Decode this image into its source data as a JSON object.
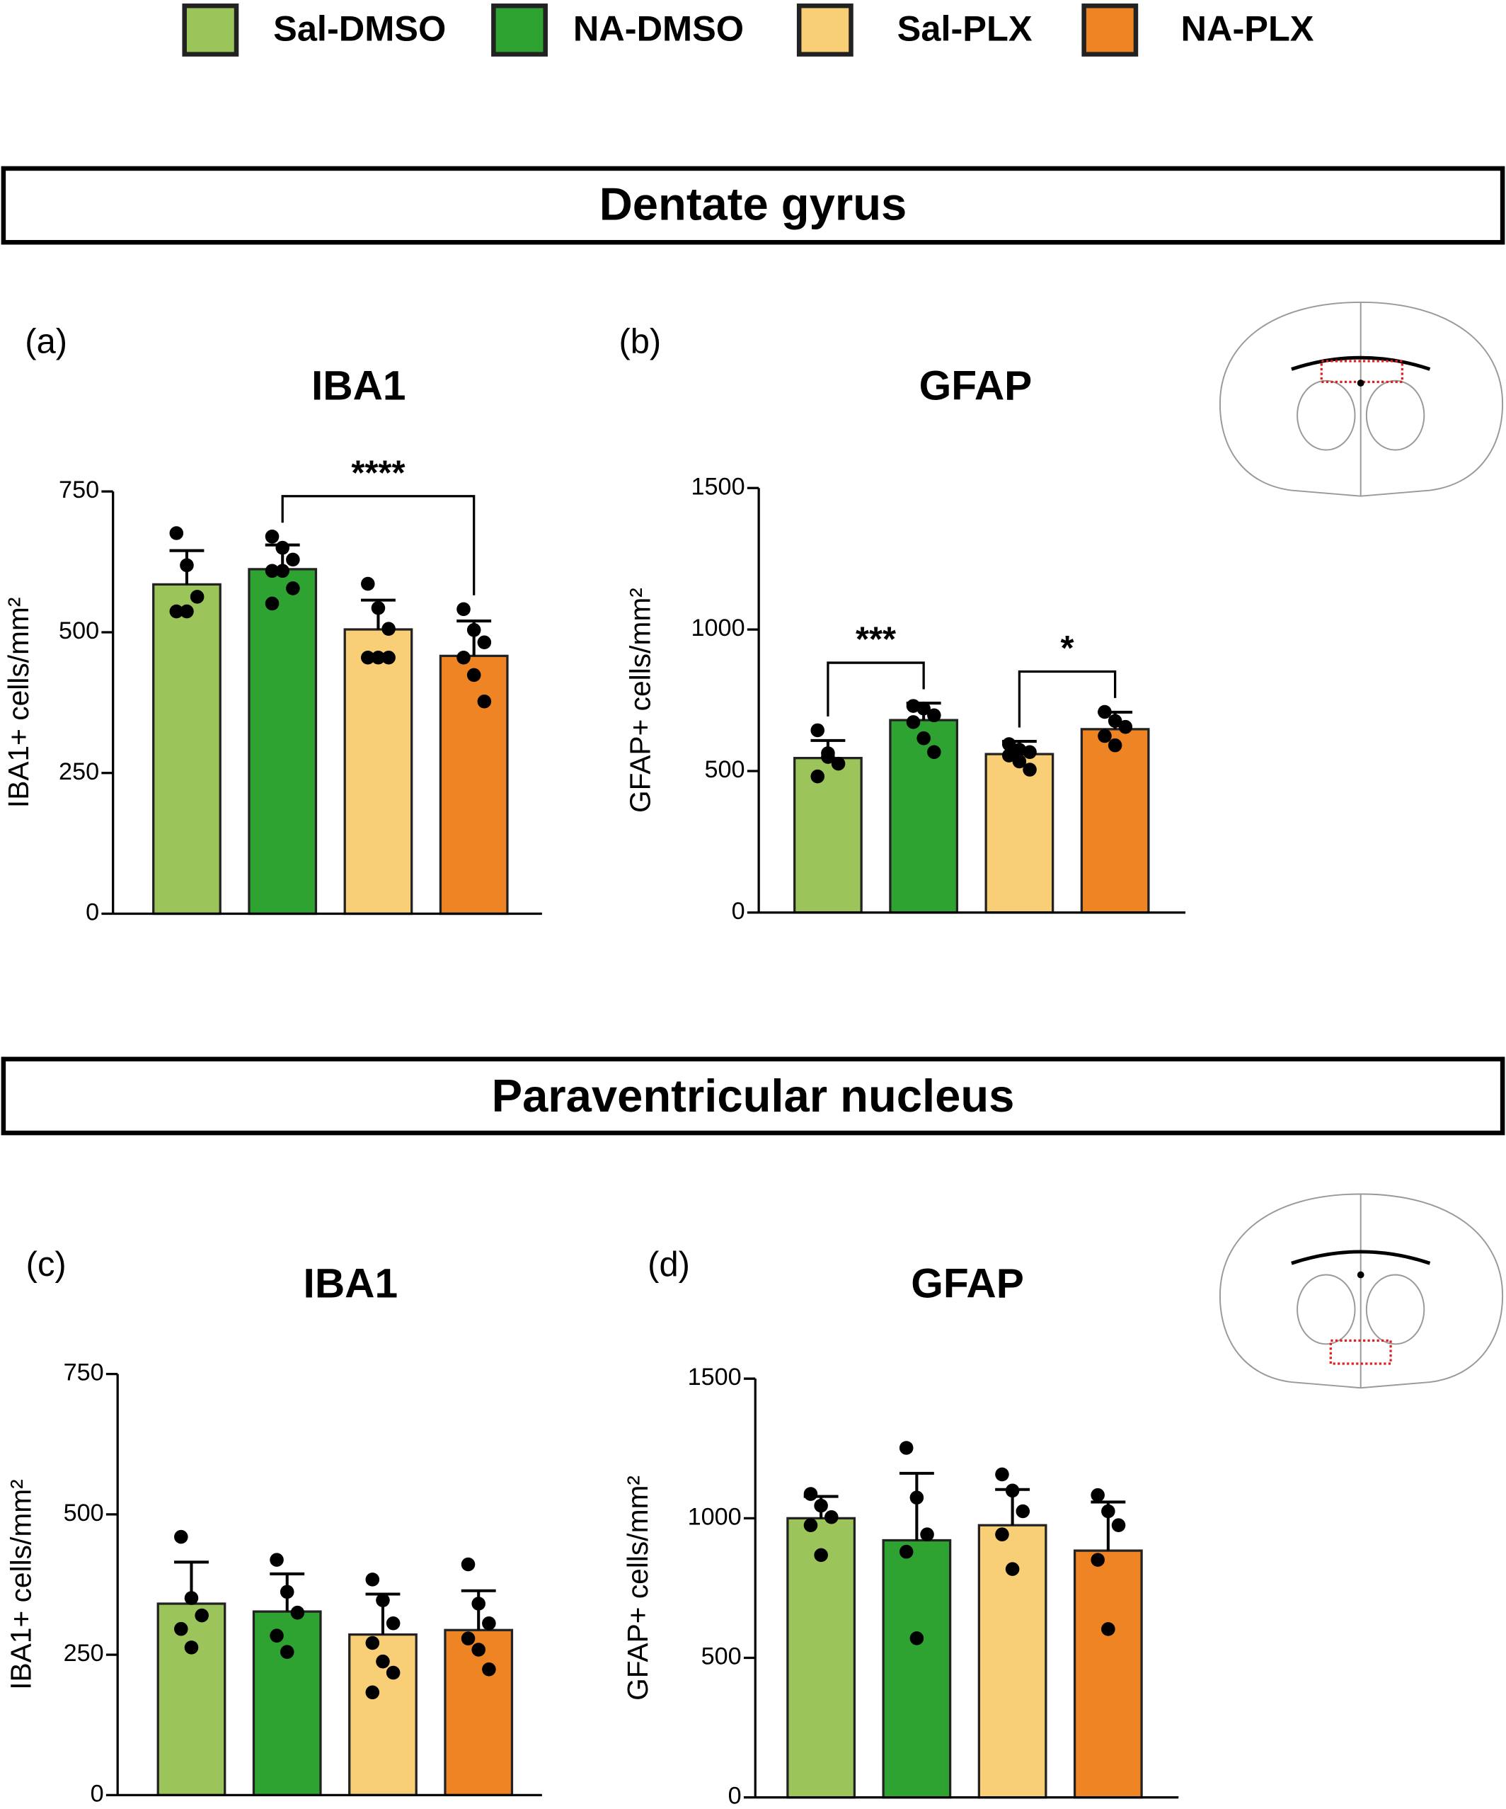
{
  "legend": [
    {
      "name": "Sal-DMSO",
      "color": "#9bc55a"
    },
    {
      "name": "NA-DMSO",
      "color": "#2ea332"
    },
    {
      "name": "Sal-PLX",
      "color": "#f8cf77"
    },
    {
      "name": "NA-PLX",
      "color": "#ee8424"
    }
  ],
  "sections": [
    "Dentate gyrus",
    "Paraventricular nucleus"
  ],
  "chart_data": [
    {
      "type": "bar",
      "panel": "(a)",
      "title": "IBA1",
      "y_label": "IBA1+ cells/mm²",
      "ylim": [
        0,
        750
      ],
      "yticks": [
        0,
        250,
        500,
        750
      ],
      "values": [
        585,
        612,
        505,
        458
      ],
      "errors": [
        60,
        43,
        52,
        62
      ],
      "points": [
        [
          676,
          619,
          563,
          537,
          537
        ],
        [
          670,
          650,
          629,
          609,
          609,
          578,
          551
        ],
        [
          586,
          543,
          506,
          455,
          455,
          455
        ],
        [
          541,
          504,
          482,
          455,
          424,
          377
        ]
      ],
      "annotations": [
        {
          "text": "****",
          "from": 1,
          "to": 3
        }
      ]
    },
    {
      "type": "bar",
      "panel": "(b)",
      "title": "GFAP",
      "y_label": "GFAP+ cells/mm²",
      "ylim": [
        0,
        1500
      ],
      "yticks": [
        0,
        500,
        1000,
        1500
      ],
      "values": [
        546,
        680,
        560,
        648
      ],
      "errors": [
        62,
        60,
        45,
        60
      ],
      "points": [
        [
          644,
          563,
          526,
          481,
          550
        ],
        [
          730,
          721,
          697,
          673,
          616,
          567
        ],
        [
          595,
          575,
          567,
          555,
          534,
          505
        ],
        [
          709,
          677,
          656,
          624,
          591
        ]
      ],
      "annotations": [
        {
          "text": "***",
          "from": 0,
          "to": 1
        },
        {
          "text": "*",
          "from": 2,
          "to": 3
        }
      ]
    },
    {
      "type": "bar",
      "panel": "(c)",
      "title": "IBA1",
      "y_label": "IBA1+ cells/mm²",
      "ylim": [
        0,
        750
      ],
      "yticks": [
        0,
        250,
        500,
        750
      ],
      "values": [
        341,
        327,
        286,
        294
      ],
      "errors": [
        74,
        67,
        72,
        70
      ],
      "points": [
        [
          460,
          351,
          320,
          296,
          263
        ],
        [
          419,
          362,
          325,
          284,
          255
        ],
        [
          384,
          347,
          306,
          271,
          238,
          218,
          183
        ],
        [
          411,
          341,
          306,
          279,
          259,
          224
        ]
      ],
      "annotations": []
    },
    {
      "type": "bar",
      "panel": "(d)",
      "title": "GFAP",
      "y_label": "GFAP+ cells/mm²",
      "ylim": [
        0,
        1500
      ],
      "yticks": [
        0,
        500,
        1000,
        1500
      ],
      "values": [
        1000,
        921,
        975,
        884
      ],
      "errors": [
        78,
        240,
        128,
        174
      ],
      "points": [
        [
          1087,
          1045,
          1004,
          975,
          868
        ],
        [
          1252,
          1074,
          942,
          880,
          570
        ],
        [
          1157,
          1099,
          1025,
          942,
          818
        ],
        [
          1083,
          1025,
          975,
          851,
          603
        ]
      ],
      "annotations": []
    }
  ]
}
